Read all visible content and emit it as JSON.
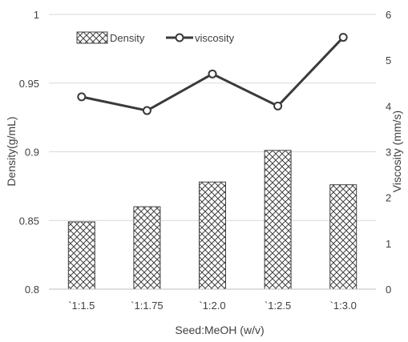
{
  "chart_data": {
    "type": "bar+line",
    "categories": [
      "`1:1.5",
      "`1:1.75",
      "`1:2.0",
      "`1:2.5",
      "`1:3.0"
    ],
    "series": [
      {
        "name": "Density",
        "type": "bar",
        "axis": "left",
        "pattern": "crosshatch",
        "values": [
          0.849,
          0.86,
          0.878,
          0.901,
          0.876
        ]
      },
      {
        "name": "viscosity",
        "type": "line",
        "axis": "right",
        "marker": "circle",
        "values": [
          4.2,
          3.9,
          4.7,
          4.0,
          5.5
        ]
      }
    ],
    "xlabel": "Seed:MeOH (w/v)",
    "ylabel": "Density(g/mL)",
    "y2label": "Viscosity (mm/s)",
    "ylim": [
      0.8,
      1.0
    ],
    "y2lim": [
      0,
      6
    ],
    "yticks": [
      "0.8",
      "0.85",
      "0.9",
      "0.95",
      "1"
    ],
    "y2ticks": [
      "0",
      "1",
      "2",
      "3",
      "4",
      "5",
      "6"
    ],
    "grid": true,
    "legend": "top-left",
    "colors": {
      "line": "#3a3a3a",
      "bar_stroke": "#404040",
      "grid": "#d9d9d9"
    }
  }
}
